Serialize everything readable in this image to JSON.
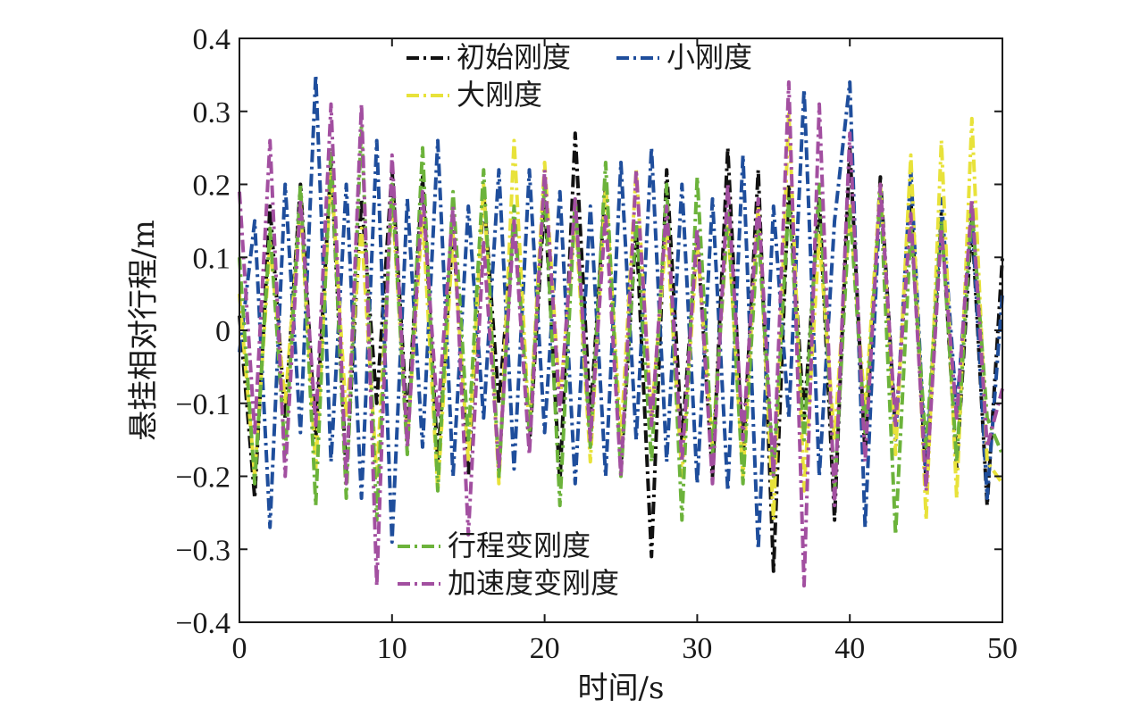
{
  "chart_data": {
    "type": "line",
    "title": "",
    "xlabel": "时间/s",
    "ylabel": "悬挂相对行程/m",
    "xlim": [
      0,
      50
    ],
    "ylim": [
      -0.4,
      0.4
    ],
    "xticks": [
      0,
      10,
      20,
      30,
      40,
      50
    ],
    "yticks": [
      0.4,
      0.3,
      0.2,
      0.1,
      0,
      -0.1,
      -0.2,
      -0.3,
      -0.4
    ],
    "x_tick_labels": [
      "0",
      "10",
      "20",
      "30",
      "40",
      "50"
    ],
    "y_tick_labels": [
      "0.4",
      "0.3",
      "0.2",
      "0.1",
      "0",
      "−0.1",
      "−0.2",
      "−0.3",
      "−0.4"
    ],
    "grid": false,
    "line_style": "dash-dot",
    "legend_upper": [
      "初始刚度",
      "小刚度",
      "大刚度"
    ],
    "legend_lower": [
      "行程变刚度",
      "加速度变刚度"
    ],
    "series": [
      {
        "name": "初始刚度",
        "color": "#111111",
        "x": [
          0,
          1,
          2,
          3,
          4,
          5,
          6,
          7,
          8,
          9,
          10,
          11,
          12,
          13,
          14,
          15,
          16,
          17,
          18,
          19,
          20,
          21,
          22,
          23,
          24,
          25,
          26,
          27,
          28,
          29,
          30,
          31,
          32,
          33,
          34,
          35,
          36,
          37,
          38,
          39,
          40,
          41,
          42,
          43,
          44,
          45,
          46,
          47,
          48,
          49,
          50
        ],
        "y": [
          0.02,
          -0.23,
          0.17,
          -0.12,
          0.2,
          -0.15,
          0.23,
          -0.2,
          0.18,
          -0.1,
          0.22,
          -0.13,
          0.21,
          -0.18,
          0.14,
          -0.2,
          0.19,
          -0.1,
          0.15,
          -0.16,
          0.18,
          -0.21,
          0.27,
          -0.12,
          0.2,
          -0.19,
          0.14,
          -0.31,
          0.22,
          -0.15,
          0.13,
          -0.2,
          0.25,
          -0.18,
          0.22,
          -0.33,
          0.2,
          -0.12,
          0.18,
          -0.26,
          0.25,
          -0.17,
          0.21,
          -0.14,
          0.18,
          -0.21,
          0.16,
          -0.19,
          0.15,
          -0.24,
          0.1
        ]
      },
      {
        "name": "小刚度",
        "color": "#1f4e9c",
        "x": [
          0,
          1,
          2,
          3,
          4,
          5,
          6,
          7,
          8,
          9,
          10,
          11,
          12,
          13,
          14,
          15,
          16,
          17,
          18,
          19,
          20,
          21,
          22,
          23,
          24,
          25,
          26,
          27,
          28,
          29,
          30,
          31,
          32,
          33,
          34,
          35,
          36,
          37,
          38,
          39,
          40,
          41,
          42,
          43,
          44,
          45,
          46,
          47,
          48,
          49,
          50
        ],
        "y": [
          -0.03,
          0.15,
          -0.27,
          0.2,
          -0.14,
          0.35,
          -0.18,
          0.2,
          -0.23,
          0.26,
          -0.29,
          0.18,
          -0.16,
          0.26,
          -0.2,
          0.17,
          -0.12,
          0.22,
          -0.19,
          0.22,
          -0.14,
          0.19,
          -0.21,
          0.17,
          -0.2,
          0.23,
          -0.15,
          0.25,
          -0.18,
          0.2,
          -0.21,
          0.18,
          -0.22,
          0.24,
          -0.3,
          0.17,
          -0.12,
          0.33,
          -0.2,
          0.15,
          0.34,
          -0.27,
          0.19,
          -0.15,
          0.22,
          -0.2,
          0.18,
          -0.11,
          0.16,
          -0.23,
          0.05
        ]
      },
      {
        "name": "大刚度",
        "color": "#e8e23a",
        "x": [
          0,
          1,
          2,
          3,
          4,
          5,
          6,
          7,
          8,
          9,
          10,
          11,
          12,
          13,
          14,
          15,
          16,
          17,
          18,
          19,
          20,
          21,
          22,
          23,
          24,
          25,
          26,
          27,
          28,
          29,
          30,
          31,
          32,
          33,
          34,
          35,
          36,
          37,
          38,
          39,
          40,
          41,
          42,
          43,
          44,
          45,
          46,
          47,
          48,
          49,
          50
        ],
        "y": [
          0.05,
          -0.2,
          0.12,
          -0.1,
          0.17,
          -0.19,
          0.22,
          -0.12,
          0.14,
          -0.2,
          0.18,
          -0.15,
          0.16,
          -0.22,
          0.13,
          -0.18,
          0.2,
          -0.21,
          0.26,
          -0.14,
          0.23,
          -0.1,
          0.16,
          -0.18,
          0.2,
          -0.15,
          0.22,
          -0.12,
          0.14,
          -0.2,
          0.12,
          -0.16,
          0.15,
          -0.2,
          0.17,
          -0.26,
          0.3,
          -0.22,
          0.13,
          -0.15,
          0.17,
          -0.11,
          0.2,
          -0.17,
          0.24,
          -0.26,
          0.26,
          -0.23,
          0.29,
          -0.18,
          -0.21
        ]
      },
      {
        "name": "行程变刚度",
        "color": "#6cb33b",
        "x": [
          0,
          1,
          2,
          3,
          4,
          5,
          6,
          7,
          8,
          9,
          10,
          11,
          12,
          13,
          14,
          15,
          16,
          17,
          18,
          19,
          20,
          21,
          22,
          23,
          24,
          25,
          26,
          27,
          28,
          29,
          30,
          31,
          32,
          33,
          34,
          35,
          36,
          37,
          38,
          39,
          40,
          41,
          42,
          43,
          44,
          45,
          46,
          47,
          48,
          49,
          50
        ],
        "y": [
          0.1,
          -0.21,
          0.14,
          -0.17,
          0.2,
          -0.24,
          0.25,
          -0.23,
          0.28,
          -0.26,
          0.2,
          -0.17,
          0.25,
          -0.22,
          0.19,
          -0.15,
          0.22,
          -0.2,
          0.17,
          -0.14,
          0.2,
          -0.24,
          0.18,
          -0.16,
          0.23,
          -0.2,
          0.15,
          -0.18,
          0.2,
          -0.26,
          0.21,
          -0.17,
          0.16,
          -0.21,
          0.14,
          -0.2,
          0.18,
          -0.15,
          0.2,
          -0.22,
          0.17,
          -0.14,
          0.19,
          -0.28,
          0.14,
          -0.16,
          0.15,
          -0.18,
          0.17,
          -0.12,
          -0.17
        ]
      },
      {
        "name": "加速度变刚度",
        "color": "#a24fa0",
        "x": [
          0,
          1,
          2,
          3,
          4,
          5,
          6,
          7,
          8,
          9,
          10,
          11,
          12,
          13,
          14,
          15,
          16,
          17,
          18,
          19,
          20,
          21,
          22,
          23,
          24,
          25,
          26,
          27,
          28,
          29,
          30,
          31,
          32,
          33,
          34,
          35,
          36,
          37,
          38,
          39,
          40,
          41,
          42,
          43,
          44,
          45,
          46,
          47,
          48,
          49,
          50
        ],
        "y": [
          0.19,
          -0.14,
          0.26,
          -0.2,
          0.18,
          -0.13,
          0.31,
          -0.21,
          0.31,
          -0.35,
          0.24,
          -0.16,
          0.19,
          -0.12,
          0.17,
          -0.28,
          0.12,
          -0.19,
          0.15,
          -0.17,
          0.22,
          -0.11,
          0.18,
          -0.15,
          0.16,
          -0.2,
          0.22,
          -0.13,
          0.17,
          -0.18,
          0.14,
          -0.21,
          0.2,
          -0.15,
          0.18,
          -0.2,
          0.34,
          -0.35,
          0.31,
          -0.24,
          0.27,
          -0.18,
          0.2,
          -0.13,
          0.16,
          -0.22,
          0.14,
          -0.12,
          0.18,
          -0.16,
          -0.08
        ]
      }
    ]
  }
}
